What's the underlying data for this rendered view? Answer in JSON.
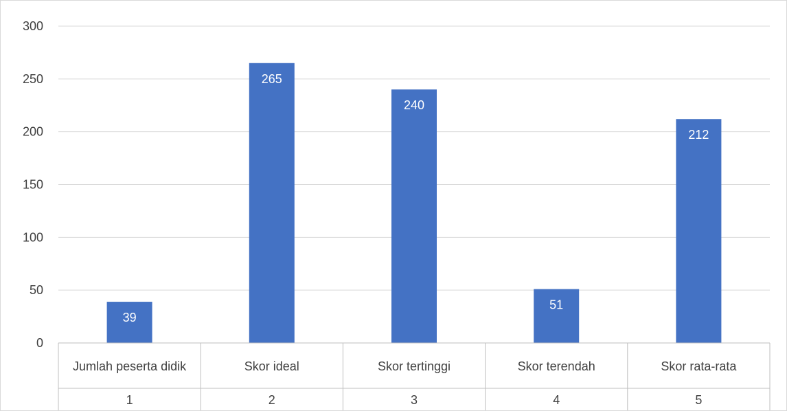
{
  "chart_data": {
    "type": "bar",
    "title": "",
    "xlabel": "",
    "ylabel": "",
    "ylim": [
      0,
      300
    ],
    "yticks": [
      0,
      50,
      100,
      150,
      200,
      250,
      300
    ],
    "grid": true,
    "legend": "none",
    "categories": [
      "Jumlah peserta didik",
      "Skor ideal",
      "Skor tertinggi",
      "Skor terendah",
      "Skor rata-rata"
    ],
    "category_numbers": [
      "1",
      "2",
      "3",
      "4",
      "5"
    ],
    "values": [
      39,
      265,
      240,
      51,
      212
    ],
    "data_labels": [
      "39",
      "265",
      "240",
      "51",
      "212"
    ],
    "colors": {
      "bar": "#4472c4",
      "grid": "#d9d9d9",
      "axis": "#bfbfbf",
      "tick_text": "#404040",
      "data_label": "#ffffff"
    }
  }
}
